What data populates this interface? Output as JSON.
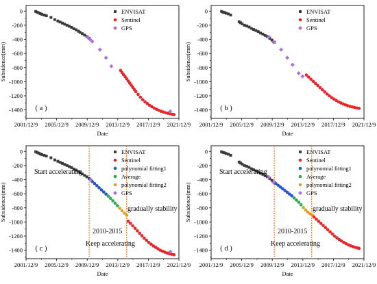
{
  "panels": [
    {
      "label": "( a )",
      "legend": [
        "ENVISAT",
        "Sentinel",
        "GPS"
      ]
    },
    {
      "label": "( b )",
      "legend": [
        "ENVISAT",
        "Sentinel",
        "GPS"
      ]
    },
    {
      "label": "( c )",
      "legend": [
        "ENVISAT",
        "Sentinel",
        "polynomial fitting1",
        "Average",
        "polynomial fitting2",
        "GPS"
      ],
      "annotations": [
        "Start accelerating",
        "gradually stability",
        "2010-2015",
        "Keep accelerating"
      ]
    },
    {
      "label": "( d )",
      "legend": [
        "ENVISAT",
        "Sentinel",
        "polynomial fitting1",
        "Average",
        "polynomial fitting2",
        "GPS"
      ],
      "annotations": [
        "Start accelerating",
        "gradually stability",
        "2010-2015",
        "Keep accelerating"
      ]
    }
  ],
  "colors": {
    "ENVISAT": "#3a3a3a",
    "Sentinel": "#e8242a",
    "GPS": "#b06ee0",
    "polynomial fitting1": "#2255c8",
    "Average": "#2ea84a",
    "polynomial fitting2": "#e0a020",
    "guide_line": "#e07020"
  },
  "chart_data": [
    {
      "panel": "a",
      "type": "scatter",
      "xlabel": "Date",
      "ylabel": "Subsidence(mm)",
      "x_tick_labels": [
        "2001/12/9",
        "2005/12/9",
        "2009/12/9",
        "2013/12/9",
        "2017/12/9",
        "2021/12/9"
      ],
      "x_ticks": [
        2001.94,
        2005.94,
        2009.94,
        2013.94,
        2017.94,
        2021.94
      ],
      "xlim": [
        2001.94,
        2021.94
      ],
      "y_ticks": [
        0,
        -200,
        -400,
        -600,
        -800,
        -1000,
        -1200,
        -1400
      ],
      "ylim": [
        -1520,
        80
      ],
      "grid": false,
      "legend_position": "top-right",
      "series": [
        {
          "name": "ENVISAT",
          "marker": "square",
          "x": [
            2003.2,
            2003.4,
            2003.6,
            2003.8,
            2004.0,
            2004.3,
            2004.6,
            2005.2,
            2005.7,
            2006.1,
            2006.4,
            2006.7,
            2007.0,
            2007.3,
            2007.6,
            2007.9,
            2008.2,
            2008.5,
            2008.8,
            2009.0,
            2009.3,
            2009.6,
            2009.9,
            2010.2
          ],
          "y": [
            -5,
            -15,
            -25,
            -35,
            -45,
            -55,
            -65,
            -90,
            -120,
            -140,
            -155,
            -170,
            -185,
            -200,
            -215,
            -230,
            -250,
            -265,
            -285,
            -300,
            -320,
            -340,
            -360,
            -385
          ]
        },
        {
          "name": "Sentinel",
          "marker": "circle",
          "x": [
            2014.3,
            2014.5,
            2014.7,
            2014.9,
            2015.1,
            2015.3,
            2015.5,
            2015.7,
            2015.9,
            2016.1,
            2016.3,
            2016.6,
            2016.9,
            2017.2,
            2017.5,
            2017.8,
            2018.1,
            2018.4,
            2018.7,
            2019.0,
            2019.3,
            2019.6,
            2019.9,
            2020.2,
            2020.5,
            2020.8,
            2021.1,
            2021.3
          ],
          "y": [
            -840,
            -870,
            -900,
            -930,
            -960,
            -990,
            -1020,
            -1050,
            -1080,
            -1110,
            -1140,
            -1180,
            -1220,
            -1255,
            -1285,
            -1310,
            -1335,
            -1355,
            -1375,
            -1390,
            -1405,
            -1420,
            -1430,
            -1440,
            -1448,
            -1455,
            -1462,
            -1466
          ]
        },
        {
          "name": "GPS",
          "marker": "diamond",
          "x": [
            2010.0,
            2010.3,
            2010.6,
            2011.6,
            2012.4,
            2013.1,
            2020.8
          ],
          "y": [
            -370,
            -400,
            -430,
            -545,
            -660,
            -780,
            -1420
          ]
        }
      ]
    },
    {
      "panel": "b",
      "type": "scatter",
      "xlabel": "Date",
      "ylabel": "Subsidence(mm)",
      "x_tick_labels": [
        "2001/12/9",
        "2005/12/9",
        "2009/12/9",
        "2013/12/9",
        "2017/12/9",
        "2021/12/9"
      ],
      "x_ticks": [
        2001.94,
        2005.94,
        2009.94,
        2013.94,
        2017.94,
        2021.94
      ],
      "xlim": [
        2001.94,
        2021.94
      ],
      "y_ticks": [
        0,
        -200,
        -400,
        -600,
        -800,
        -1000,
        -1200,
        -1400
      ],
      "ylim": [
        -1520,
        80
      ],
      "grid": false,
      "legend_position": "top-right",
      "series": [
        {
          "name": "ENVISAT",
          "marker": "square",
          "x": [
            2003.3,
            2003.5,
            2003.7,
            2003.9,
            2004.2,
            2004.5,
            2005.6,
            2005.8,
            2006.0,
            2006.3,
            2006.6,
            2006.9,
            2007.2,
            2007.5,
            2007.8,
            2008.1,
            2008.4,
            2008.7,
            2009.0,
            2009.3,
            2009.6,
            2009.9,
            2010.2
          ],
          "y": [
            -5,
            -15,
            -20,
            -30,
            -40,
            -55,
            -150,
            -165,
            -180,
            -200,
            -210,
            -225,
            -245,
            -260,
            -275,
            -290,
            -310,
            -325,
            -345,
            -360,
            -385,
            -410,
            -440
          ]
        },
        {
          "name": "Sentinel",
          "marker": "circle",
          "x": [
            2014.4,
            2014.7,
            2015.0,
            2015.3,
            2015.6,
            2015.9,
            2016.2,
            2016.5,
            2016.8,
            2017.1,
            2017.4,
            2017.7,
            2018.0,
            2018.3,
            2018.6,
            2018.9,
            2019.2,
            2019.5,
            2019.8,
            2020.1,
            2020.4,
            2020.7,
            2021.0,
            2021.3
          ],
          "y": [
            -905,
            -935,
            -965,
            -995,
            -1025,
            -1055,
            -1085,
            -1115,
            -1145,
            -1175,
            -1200,
            -1225,
            -1245,
            -1265,
            -1285,
            -1300,
            -1315,
            -1328,
            -1340,
            -1350,
            -1358,
            -1365,
            -1372,
            -1378
          ]
        },
        {
          "name": "GPS",
          "marker": "diamond",
          "x": [
            2009.5,
            2010.1,
            2011.1,
            2011.9,
            2012.6,
            2013.4,
            2013.9
          ],
          "y": [
            -365,
            -440,
            -545,
            -660,
            -760,
            -880,
            -925
          ]
        }
      ]
    },
    {
      "panel": "c",
      "type": "scatter",
      "xlabel": "Date",
      "ylabel": "Subsidence(mm)",
      "x_tick_labels": [
        "2001/12/9",
        "2005/12/9",
        "2009/12/9",
        "2013/12/9",
        "2017/12/9",
        "2021/12/9"
      ],
      "x_ticks": [
        2001.94,
        2005.94,
        2009.94,
        2013.94,
        2017.94,
        2021.94
      ],
      "xlim": [
        2001.94,
        2021.94
      ],
      "y_ticks": [
        0,
        -200,
        -400,
        -600,
        -800,
        -1000,
        -1200,
        -1400
      ],
      "ylim": [
        -1520,
        80
      ],
      "grid": false,
      "legend_position": "top-right",
      "vlines": [
        2010.2,
        2015.1
      ],
      "series": [
        {
          "name": "ENVISAT",
          "marker": "square",
          "x": [
            2003.2,
            2003.4,
            2003.6,
            2003.8,
            2004.0,
            2004.3,
            2004.6,
            2005.2,
            2005.7,
            2006.1,
            2006.4,
            2006.7,
            2007.0,
            2007.3,
            2007.6,
            2007.9,
            2008.2,
            2008.5,
            2008.8,
            2009.0,
            2009.3,
            2009.6,
            2009.9,
            2010.2
          ],
          "y": [
            -5,
            -15,
            -25,
            -35,
            -45,
            -55,
            -65,
            -90,
            -120,
            -140,
            -155,
            -170,
            -185,
            -200,
            -215,
            -230,
            -250,
            -265,
            -285,
            -300,
            -320,
            -340,
            -360,
            -385
          ]
        },
        {
          "name": "polynomial fitting1",
          "marker": "circle",
          "x": [
            2010.3,
            2010.6,
            2010.9,
            2011.2,
            2011.5,
            2011.8,
            2012.1,
            2012.4
          ],
          "y": [
            -395,
            -425,
            -455,
            -485,
            -515,
            -545,
            -575,
            -605
          ]
        },
        {
          "name": "Average",
          "marker": "circle",
          "x": [
            2012.7,
            2013.0,
            2013.3,
            2013.6,
            2013.9
          ],
          "y": [
            -635,
            -665,
            -700,
            -735,
            -770
          ]
        },
        {
          "name": "polynomial fitting2",
          "marker": "circle",
          "x": [
            2014.2,
            2014.5,
            2014.8,
            2015.1
          ],
          "y": [
            -805,
            -840,
            -875,
            -905
          ]
        },
        {
          "name": "Sentinel",
          "marker": "circle",
          "x": [
            2015.3,
            2015.6,
            2015.9,
            2016.2,
            2016.5,
            2016.8,
            2017.1,
            2017.4,
            2017.7,
            2018.0,
            2018.3,
            2018.6,
            2018.9,
            2019.2,
            2019.5,
            2019.8,
            2020.1,
            2020.4,
            2020.7,
            2021.0,
            2021.3
          ],
          "y": [
            -990,
            -1020,
            -1055,
            -1090,
            -1125,
            -1160,
            -1195,
            -1230,
            -1260,
            -1290,
            -1315,
            -1340,
            -1360,
            -1380,
            -1400,
            -1415,
            -1428,
            -1440,
            -1450,
            -1458,
            -1464
          ]
        },
        {
          "name": "GPS",
          "marker": "diamond",
          "x": [
            2010.4,
            2020.8
          ],
          "y": [
            -400,
            -1420
          ]
        }
      ]
    },
    {
      "panel": "d",
      "type": "scatter",
      "xlabel": "Date",
      "ylabel": "Subsidence(mm)",
      "x_tick_labels": [
        "2001/12/9",
        "2005/12/9",
        "2009/12/9",
        "2013/12/9",
        "2017/12/9",
        "2021/12/9"
      ],
      "x_ticks": [
        2001.94,
        2005.94,
        2009.94,
        2013.94,
        2017.94,
        2021.94
      ],
      "xlim": [
        2001.94,
        2021.94
      ],
      "y_ticks": [
        0,
        -200,
        -400,
        -600,
        -800,
        -1000,
        -1200,
        -1400
      ],
      "ylim": [
        -1520,
        80
      ],
      "grid": false,
      "legend_position": "top-right",
      "vlines": [
        2010.2,
        2015.1
      ],
      "series": [
        {
          "name": "ENVISAT",
          "marker": "square",
          "x": [
            2003.3,
            2003.5,
            2003.7,
            2003.9,
            2004.2,
            2004.5,
            2005.6,
            2005.8,
            2006.0,
            2006.3,
            2006.6,
            2006.9,
            2007.2,
            2007.5,
            2007.8,
            2008.1,
            2008.4,
            2008.7,
            2009.0,
            2009.3,
            2009.6,
            2009.9,
            2010.2
          ],
          "y": [
            -5,
            -15,
            -20,
            -30,
            -40,
            -55,
            -150,
            -165,
            -180,
            -200,
            -210,
            -225,
            -245,
            -260,
            -275,
            -290,
            -310,
            -325,
            -345,
            -360,
            -385,
            -410,
            -440
          ]
        },
        {
          "name": "polynomial fitting1",
          "marker": "circle",
          "x": [
            2010.4,
            2010.7,
            2011.0,
            2011.3,
            2011.6,
            2011.9,
            2012.2,
            2012.5
          ],
          "y": [
            -455,
            -480,
            -505,
            -530,
            -555,
            -580,
            -605,
            -630
          ]
        },
        {
          "name": "Average",
          "marker": "circle",
          "x": [
            2012.8,
            2013.1,
            2013.4,
            2013.7
          ],
          "y": [
            -660,
            -690,
            -720,
            -755
          ]
        },
        {
          "name": "polynomial fitting2",
          "marker": "circle",
          "x": [
            2014.0,
            2014.3,
            2014.6,
            2014.9,
            2015.2
          ],
          "y": [
            -795,
            -830,
            -860,
            -885,
            -905
          ]
        },
        {
          "name": "Sentinel",
          "marker": "circle",
          "x": [
            2015.4,
            2015.7,
            2016.0,
            2016.3,
            2016.6,
            2016.9,
            2017.2,
            2017.5,
            2017.8,
            2018.1,
            2018.4,
            2018.7,
            2019.0,
            2019.3,
            2019.6,
            2019.9,
            2020.2,
            2020.5,
            2020.8,
            2021.1,
            2021.3
          ],
          "y": [
            -930,
            -960,
            -990,
            -1020,
            -1050,
            -1080,
            -1110,
            -1140,
            -1170,
            -1200,
            -1225,
            -1250,
            -1270,
            -1290,
            -1308,
            -1325,
            -1338,
            -1350,
            -1360,
            -1368,
            -1374
          ]
        },
        {
          "name": "GPS",
          "marker": "diamond",
          "x": [
            2009.5,
            2010.1
          ],
          "y": [
            -365,
            -440
          ]
        }
      ]
    }
  ]
}
